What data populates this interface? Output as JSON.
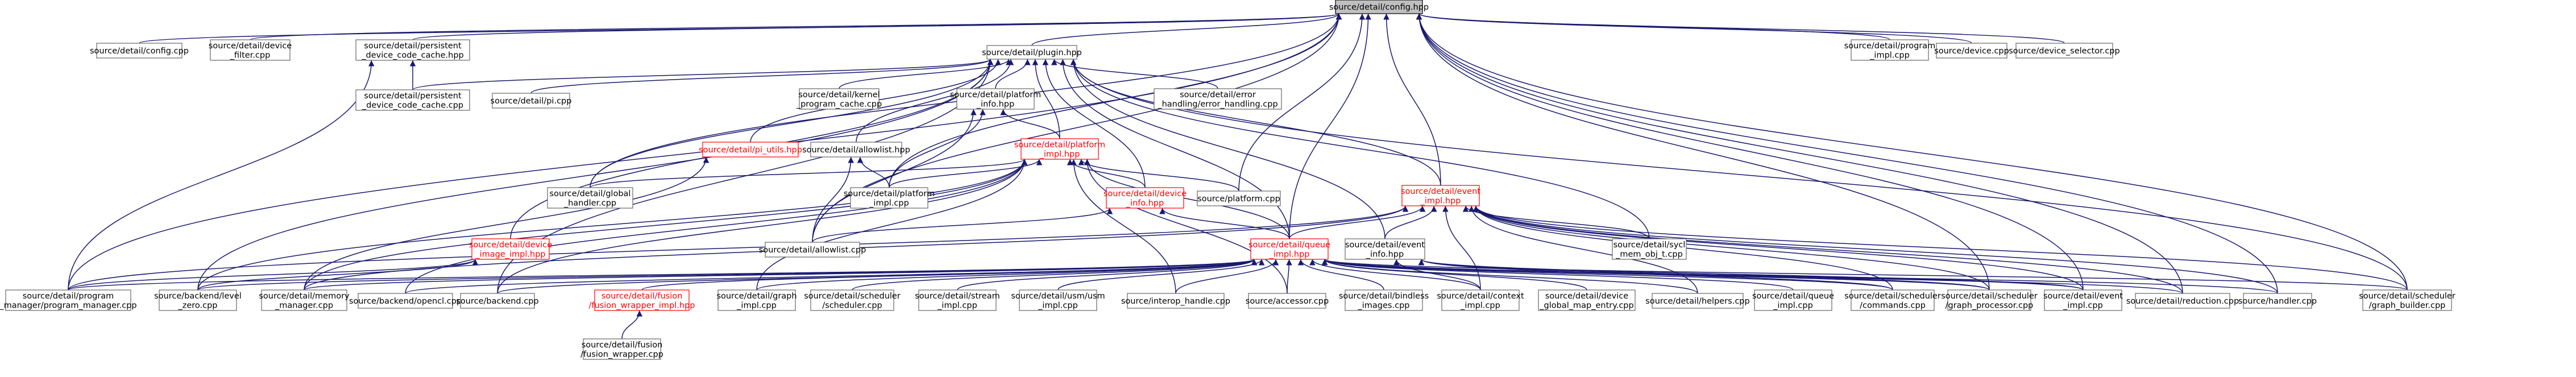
{
  "colors": {
    "edge": "#191970",
    "node_border": "#666666",
    "root_fill": "#bfbfbf",
    "highlight": "#ff0000"
  },
  "nodes": [
    {
      "id": "config_hpp",
      "lines": [
        "source/detail/config.hpp"
      ],
      "root": true
    },
    {
      "id": "config_cpp",
      "lines": [
        "source/detail/config.cpp"
      ]
    },
    {
      "id": "device_filter",
      "lines": [
        "source/detail/device",
        "_filter.cpp"
      ]
    },
    {
      "id": "pdcc_hpp",
      "lines": [
        "source/detail/persistent",
        "_device_code_cache.hpp"
      ]
    },
    {
      "id": "plugin_hpp",
      "lines": [
        "source/detail/plugin.hpp"
      ]
    },
    {
      "id": "program_impl",
      "lines": [
        "source/detail/program",
        "_impl.cpp"
      ]
    },
    {
      "id": "device_cpp",
      "lines": [
        "source/device.cpp"
      ]
    },
    {
      "id": "device_selector",
      "lines": [
        "source/device_selector.cpp"
      ]
    },
    {
      "id": "pdcc_cpp",
      "lines": [
        "source/detail/persistent",
        "_device_code_cache.cpp"
      ]
    },
    {
      "id": "pi_cpp",
      "lines": [
        "source/detail/pi.cpp"
      ]
    },
    {
      "id": "kernel_program_cache",
      "lines": [
        "source/detail/kernel",
        "_program_cache.cpp"
      ]
    },
    {
      "id": "platform_info",
      "lines": [
        "source/detail/platform",
        "_info.hpp"
      ]
    },
    {
      "id": "error_handling",
      "lines": [
        "source/detail/error",
        "_handling/error_handling.cpp"
      ]
    },
    {
      "id": "pi_utils",
      "lines": [
        "source/detail/pi_utils.hpp"
      ],
      "red": true
    },
    {
      "id": "allowlist_hpp",
      "lines": [
        "source/detail/allowlist.hpp"
      ]
    },
    {
      "id": "platform_impl_hpp",
      "lines": [
        "source/detail/platform",
        "_impl.hpp"
      ],
      "red": true
    },
    {
      "id": "global_handler",
      "lines": [
        "source/detail/global",
        "_handler.cpp"
      ]
    },
    {
      "id": "platform_impl_cpp",
      "lines": [
        "source/detail/platform",
        "_impl.cpp"
      ]
    },
    {
      "id": "device_info",
      "lines": [
        "source/detail/device",
        "_info.hpp"
      ],
      "red": true
    },
    {
      "id": "platform_cpp",
      "lines": [
        "source/platform.cpp"
      ]
    },
    {
      "id": "event_impl_hpp",
      "lines": [
        "source/detail/event",
        "_impl.hpp"
      ],
      "red": true
    },
    {
      "id": "device_image_impl",
      "lines": [
        "source/detail/device",
        "_image_impl.hpp"
      ],
      "red": true
    },
    {
      "id": "allowlist_cpp",
      "lines": [
        "source/detail/allowlist.cpp"
      ]
    },
    {
      "id": "queue_impl_hpp",
      "lines": [
        "source/detail/queue",
        "_impl.hpp"
      ],
      "red": true
    },
    {
      "id": "event_info",
      "lines": [
        "source/detail/event",
        "_info.hpp"
      ]
    },
    {
      "id": "sycl_mem_obj",
      "lines": [
        "source/detail/sycl",
        "_mem_obj_t.cpp"
      ]
    },
    {
      "id": "program_manager",
      "lines": [
        "source/detail/program",
        "_manager/program_manager.cpp"
      ]
    },
    {
      "id": "level_zero",
      "lines": [
        "source/backend/level",
        "_zero.cpp"
      ]
    },
    {
      "id": "memory_manager",
      "lines": [
        "source/detail/memory",
        "_manager.cpp"
      ]
    },
    {
      "id": "opencl",
      "lines": [
        "source/backend/opencl.cpp"
      ]
    },
    {
      "id": "backend_cpp",
      "lines": [
        "source/backend.cpp"
      ]
    },
    {
      "id": "fusion_wrapper_impl",
      "lines": [
        "source/detail/fusion",
        "/fusion_wrapper_impl.hpp"
      ],
      "red": true
    },
    {
      "id": "graph_impl",
      "lines": [
        "source/detail/graph",
        "_impl.cpp"
      ]
    },
    {
      "id": "scheduler_cpp",
      "lines": [
        "source/detail/scheduler",
        "/scheduler.cpp"
      ]
    },
    {
      "id": "stream_impl",
      "lines": [
        "source/detail/stream",
        "_impl.cpp"
      ]
    },
    {
      "id": "usm_impl",
      "lines": [
        "source/detail/usm/usm",
        "_impl.cpp"
      ]
    },
    {
      "id": "interop_handle",
      "lines": [
        "source/interop_handle.cpp"
      ]
    },
    {
      "id": "accessor",
      "lines": [
        "source/accessor.cpp"
      ]
    },
    {
      "id": "bindless_images",
      "lines": [
        "source/detail/bindless",
        "_images.cpp"
      ]
    },
    {
      "id": "context_impl",
      "lines": [
        "source/detail/context",
        "_impl.cpp"
      ]
    },
    {
      "id": "device_global_map",
      "lines": [
        "source/detail/device",
        "_global_map_entry.cpp"
      ]
    },
    {
      "id": "helpers",
      "lines": [
        "source/detail/helpers.cpp"
      ]
    },
    {
      "id": "queue_impl_cpp",
      "lines": [
        "source/detail/queue",
        "_impl.cpp"
      ]
    },
    {
      "id": "commands",
      "lines": [
        "source/detail/scheduler",
        "/commands.cpp"
      ]
    },
    {
      "id": "graph_processor",
      "lines": [
        "source/detail/scheduler",
        "/graph_processor.cpp"
      ]
    },
    {
      "id": "event_impl_cpp",
      "lines": [
        "source/detail/event",
        "_impl.cpp"
      ]
    },
    {
      "id": "reduction",
      "lines": [
        "source/detail/reduction.cpp"
      ]
    },
    {
      "id": "handler",
      "lines": [
        "source/handler.cpp"
      ]
    },
    {
      "id": "graph_builder",
      "lines": [
        "source/detail/scheduler",
        "/graph_builder.cpp"
      ]
    },
    {
      "id": "fusion_wrapper_cpp",
      "lines": [
        "source/detail/fusion",
        "/fusion_wrapper.cpp"
      ]
    }
  ],
  "edges": [
    [
      "config_cpp",
      "config_hpp"
    ],
    [
      "device_filter",
      "config_hpp"
    ],
    [
      "pdcc_hpp",
      "config_hpp"
    ],
    [
      "plugin_hpp",
      "config_hpp"
    ],
    [
      "program_impl",
      "config_hpp"
    ],
    [
      "device_cpp",
      "config_hpp"
    ],
    [
      "device_selector",
      "config_hpp"
    ],
    [
      "program_manager",
      "config_hpp"
    ],
    [
      "global_handler",
      "config_hpp"
    ],
    [
      "allowlist_cpp",
      "config_hpp"
    ],
    [
      "platform_cpp",
      "config_hpp"
    ],
    [
      "queue_impl_hpp",
      "config_hpp"
    ],
    [
      "platform_impl_cpp",
      "config_hpp"
    ],
    [
      "event_impl_hpp",
      "config_hpp"
    ],
    [
      "graph_builder",
      "config_hpp"
    ],
    [
      "handler",
      "config_hpp"
    ],
    [
      "reduction",
      "config_hpp"
    ],
    [
      "event_impl_cpp",
      "config_hpp"
    ],
    [
      "graph_processor",
      "config_hpp"
    ],
    [
      "pdcc_cpp",
      "pdcc_hpp"
    ],
    [
      "program_manager",
      "pdcc_hpp"
    ],
    [
      "pdcc_cpp",
      "plugin_hpp"
    ],
    [
      "pi_cpp",
      "plugin_hpp"
    ],
    [
      "kernel_program_cache",
      "plugin_hpp"
    ],
    [
      "platform_info",
      "plugin_hpp"
    ],
    [
      "error_handling",
      "plugin_hpp"
    ],
    [
      "pi_utils",
      "plugin_hpp"
    ],
    [
      "allowlist_hpp",
      "plugin_hpp"
    ],
    [
      "platform_impl_hpp",
      "plugin_hpp"
    ],
    [
      "global_handler",
      "plugin_hpp"
    ],
    [
      "device_info",
      "plugin_hpp"
    ],
    [
      "event_impl_hpp",
      "plugin_hpp"
    ],
    [
      "device_image_impl",
      "plugin_hpp"
    ],
    [
      "level_zero",
      "plugin_hpp"
    ],
    [
      "queue_impl_hpp",
      "plugin_hpp"
    ],
    [
      "event_info",
      "plugin_hpp"
    ],
    [
      "sycl_mem_obj",
      "plugin_hpp"
    ],
    [
      "backend_cpp",
      "plugin_hpp"
    ],
    [
      "graph_builder",
      "plugin_hpp"
    ],
    [
      "platform_impl_hpp",
      "platform_info"
    ],
    [
      "allowlist_cpp",
      "platform_info"
    ],
    [
      "platform_impl_cpp",
      "platform_info"
    ],
    [
      "memory_manager",
      "pi_utils"
    ],
    [
      "platform_impl_cpp",
      "allowlist_hpp"
    ],
    [
      "allowlist_cpp",
      "allowlist_hpp"
    ],
    [
      "global_handler",
      "platform_impl_hpp"
    ],
    [
      "platform_impl_cpp",
      "platform_impl_hpp"
    ],
    [
      "device_info",
      "platform_impl_hpp"
    ],
    [
      "platform_cpp",
      "platform_impl_hpp"
    ],
    [
      "queue_impl_hpp",
      "platform_impl_hpp"
    ],
    [
      "memory_manager",
      "platform_impl_hpp"
    ],
    [
      "opencl",
      "platform_impl_hpp"
    ],
    [
      "backend_cpp",
      "platform_impl_hpp"
    ],
    [
      "interop_handle",
      "platform_impl_hpp"
    ],
    [
      "level_zero",
      "platform_impl_hpp"
    ],
    [
      "accessor",
      "platform_impl_hpp"
    ],
    [
      "graph_impl",
      "platform_impl_hpp"
    ],
    [
      "allowlist_cpp",
      "device_info"
    ],
    [
      "queue_impl_hpp",
      "device_info"
    ],
    [
      "event_info",
      "event_impl_hpp"
    ],
    [
      "sycl_mem_obj",
      "event_impl_hpp"
    ],
    [
      "queue_impl_hpp",
      "event_impl_hpp"
    ],
    [
      "program_manager",
      "event_impl_hpp"
    ],
    [
      "memory_manager",
      "event_impl_hpp"
    ],
    [
      "context_impl",
      "event_impl_hpp"
    ],
    [
      "helpers",
      "event_impl_hpp"
    ],
    [
      "commands",
      "event_impl_hpp"
    ],
    [
      "graph_processor",
      "event_impl_hpp"
    ],
    [
      "event_impl_cpp",
      "event_impl_hpp"
    ],
    [
      "reduction",
      "event_impl_hpp"
    ],
    [
      "handler",
      "event_impl_hpp"
    ],
    [
      "graph_builder",
      "event_impl_hpp"
    ],
    [
      "program_manager",
      "device_image_impl"
    ],
    [
      "level_zero",
      "device_image_impl"
    ],
    [
      "program_manager",
      "queue_impl_hpp"
    ],
    [
      "level_zero",
      "queue_impl_hpp"
    ],
    [
      "memory_manager",
      "queue_impl_hpp"
    ],
    [
      "opencl",
      "queue_impl_hpp"
    ],
    [
      "backend_cpp",
      "queue_impl_hpp"
    ],
    [
      "fusion_wrapper_impl",
      "queue_impl_hpp"
    ],
    [
      "graph_impl",
      "queue_impl_hpp"
    ],
    [
      "scheduler_cpp",
      "queue_impl_hpp"
    ],
    [
      "stream_impl",
      "queue_impl_hpp"
    ],
    [
      "usm_impl",
      "queue_impl_hpp"
    ],
    [
      "interop_handle",
      "queue_impl_hpp"
    ],
    [
      "accessor",
      "queue_impl_hpp"
    ],
    [
      "bindless_images",
      "queue_impl_hpp"
    ],
    [
      "context_impl",
      "queue_impl_hpp"
    ],
    [
      "device_global_map",
      "queue_impl_hpp"
    ],
    [
      "helpers",
      "queue_impl_hpp"
    ],
    [
      "queue_impl_cpp",
      "queue_impl_hpp"
    ],
    [
      "commands",
      "queue_impl_hpp"
    ],
    [
      "graph_processor",
      "queue_impl_hpp"
    ],
    [
      "event_impl_cpp",
      "queue_impl_hpp"
    ],
    [
      "reduction",
      "queue_impl_hpp"
    ],
    [
      "handler",
      "queue_impl_hpp"
    ],
    [
      "graph_builder",
      "queue_impl_hpp"
    ],
    [
      "commands",
      "event_info"
    ],
    [
      "event_impl_cpp",
      "event_info"
    ],
    [
      "graph_processor",
      "event_info"
    ],
    [
      "context_impl",
      "event_info"
    ],
    [
      "fusion_wrapper_cpp",
      "fusion_wrapper_impl"
    ]
  ]
}
